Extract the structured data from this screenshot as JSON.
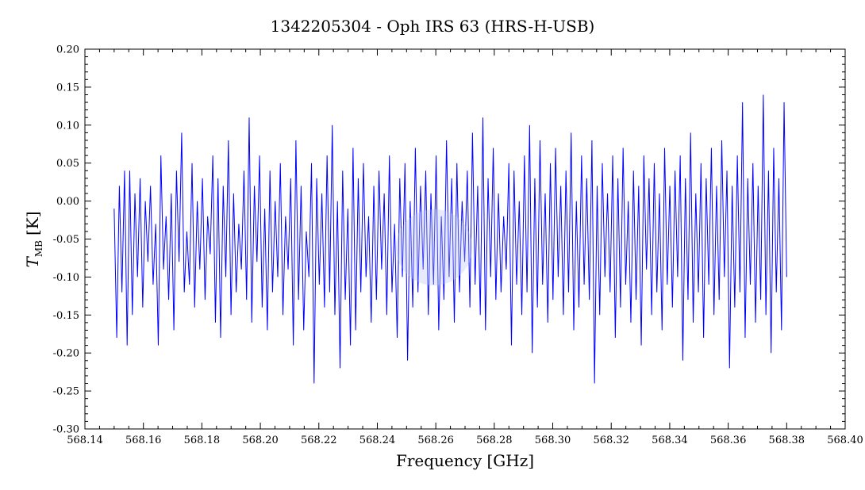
{
  "chart_data": {
    "type": "line",
    "title": "1342205304 - Oph IRS 63 (HRS-H-USB)",
    "xlabel": "Frequency [GHz]",
    "ylabel_main": "T",
    "ylabel_sub": "MB",
    "ylabel_unit": "[K]",
    "xlim": [
      568.14,
      568.4
    ],
    "ylim": [
      -0.3,
      0.2
    ],
    "x_ticks": [
      "568.14",
      "568.16",
      "568.18",
      "568.20",
      "568.22",
      "568.24",
      "568.26",
      "568.28",
      "568.30",
      "568.32",
      "568.34",
      "568.36",
      "568.38",
      "568.40"
    ],
    "y_ticks": [
      "0.20",
      "0.15",
      "0.10",
      "0.05",
      "0.00",
      "-0.05",
      "-0.10",
      "-0.15",
      "-0.20",
      "-0.25",
      "-0.30"
    ],
    "grid": false,
    "legend": "none",
    "series": [
      {
        "color": "#0000ff",
        "x_start": 568.15,
        "x_end": 568.38,
        "values": [
          -0.01,
          -0.18,
          0.02,
          -0.12,
          0.04,
          -0.19,
          0.04,
          -0.15,
          0.01,
          -0.1,
          0.03,
          -0.14,
          0.0,
          -0.08,
          0.02,
          -0.11,
          -0.03,
          -0.19,
          0.06,
          -0.09,
          -0.02,
          -0.13,
          0.01,
          -0.17,
          0.04,
          -0.08,
          0.09,
          -0.12,
          -0.04,
          -0.11,
          0.05,
          -0.14,
          0.0,
          -0.09,
          0.03,
          -0.13,
          -0.02,
          -0.07,
          0.06,
          -0.16,
          0.03,
          -0.18,
          0.02,
          -0.1,
          0.08,
          -0.15,
          0.01,
          -0.12,
          -0.03,
          -0.09,
          0.04,
          -0.13,
          0.11,
          -0.16,
          0.02,
          -0.08,
          0.06,
          -0.14,
          -0.01,
          -0.17,
          0.04,
          -0.12,
          0.0,
          -0.1,
          0.05,
          -0.15,
          -0.02,
          -0.09,
          0.03,
          -0.19,
          0.08,
          -0.13,
          0.02,
          -0.17,
          -0.04,
          -0.1,
          0.05,
          -0.24,
          0.03,
          -0.11,
          0.01,
          -0.14,
          0.06,
          -0.12,
          0.1,
          -0.15,
          0.0,
          -0.22,
          0.04,
          -0.13,
          -0.01,
          -0.19,
          0.07,
          -0.17,
          0.03,
          -0.12,
          0.05,
          -0.1,
          -0.02,
          -0.16,
          0.02,
          -0.13,
          0.04,
          -0.09,
          0.01,
          -0.15,
          0.06,
          -0.12,
          -0.03,
          -0.18,
          0.03,
          -0.1,
          0.05,
          -0.21,
          0.0,
          -0.14,
          0.07,
          -0.12,
          0.02,
          -0.09,
          0.04,
          -0.15,
          0.01,
          -0.11,
          0.06,
          -0.17,
          -0.02,
          -0.13,
          0.08,
          -0.1,
          0.03,
          -0.16,
          0.05,
          -0.12,
          0.0,
          -0.08,
          0.04,
          -0.14,
          0.09,
          -0.11,
          0.02,
          -0.15,
          0.11,
          -0.17,
          0.03,
          -0.1,
          0.07,
          -0.13,
          0.01,
          -0.12,
          -0.02,
          -0.09,
          0.05,
          -0.19,
          0.04,
          -0.11,
          0.0,
          -0.15,
          0.06,
          -0.12,
          0.1,
          -0.2,
          0.03,
          -0.14,
          0.08,
          -0.11,
          0.01,
          -0.16,
          0.05,
          -0.13,
          0.07,
          -0.1,
          0.02,
          -0.15,
          0.04,
          -0.12,
          0.09,
          -0.17,
          0.0,
          -0.14,
          0.06,
          -0.11,
          0.03,
          -0.13,
          0.08,
          -0.24,
          0.02,
          -0.15,
          0.05,
          -0.1,
          0.01,
          -0.12,
          0.06,
          -0.18,
          0.03,
          -0.14,
          0.07,
          -0.11,
          0.0,
          -0.16,
          0.04,
          -0.13,
          0.02,
          -0.19,
          0.06,
          -0.09,
          0.03,
          -0.15,
          0.05,
          -0.12,
          0.01,
          -0.17,
          0.07,
          -0.11,
          0.02,
          -0.14,
          0.04,
          -0.1,
          0.06,
          -0.21,
          0.03,
          -0.13,
          0.09,
          -0.16,
          0.01,
          -0.12,
          0.05,
          -0.18,
          0.03,
          -0.11,
          0.07,
          -0.15,
          0.02,
          -0.13,
          0.08,
          -0.1,
          0.04,
          -0.22,
          0.02,
          -0.14,
          0.06,
          -0.12,
          0.13,
          -0.18,
          0.03,
          -0.11,
          0.05,
          -0.16,
          0.02,
          -0.13,
          0.14,
          -0.15,
          0.04,
          -0.2,
          0.07,
          -0.12,
          0.03,
          -0.17,
          0.13,
          -0.1
        ]
      }
    ]
  }
}
